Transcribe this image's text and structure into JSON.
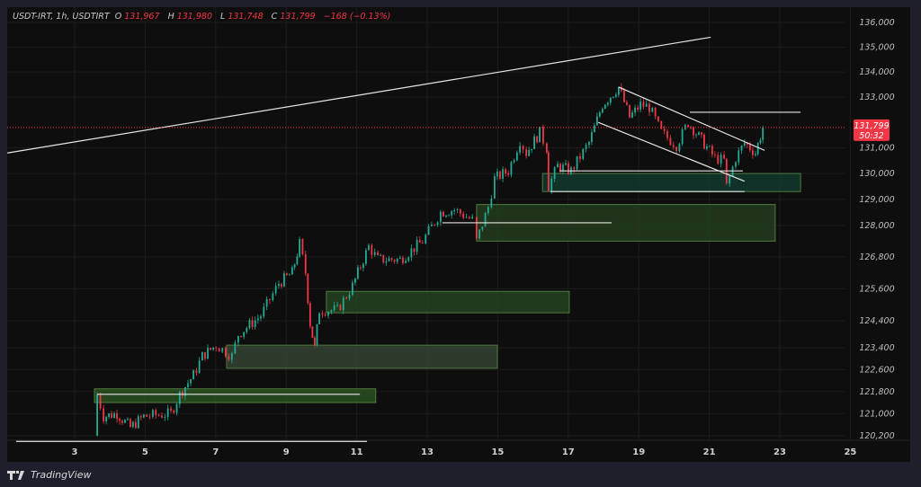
{
  "legend": {
    "symbol": "USDT-IRT, 1h, USDTIRT",
    "open_label": "O",
    "open": "131,967",
    "high_label": "H",
    "high": "131,980",
    "low_label": "L",
    "low": "131,748",
    "close_label": "C",
    "close": "131,799",
    "change": "−168 (−0.13%)"
  },
  "last_price": {
    "value": "131,799",
    "countdown": "50:32",
    "color": "#f23645"
  },
  "branding": {
    "name": "TradingView"
  },
  "colors": {
    "up": "#22ab94",
    "down": "#f23645",
    "background": "#0e0e0e",
    "frame": "#1e1f2a"
  },
  "chart_data": {
    "type": "candlestick",
    "interval": "1h",
    "y_scale": "log",
    "ylim": [
      120000,
      136500
    ],
    "xlim": [
      1,
      26
    ],
    "grid": true,
    "x_ticks": [
      "3",
      "5",
      "7",
      "9",
      "11",
      "13",
      "15",
      "17",
      "19",
      "21",
      "23",
      "25"
    ],
    "y_ticks": [
      "136,000",
      "135,000",
      "134,000",
      "133,000",
      "131,000",
      "130,000",
      "129,000",
      "128,000",
      "126,800",
      "125,600",
      "124,400",
      "123,400",
      "122,600",
      "121,800",
      "121,000",
      "120,200"
    ],
    "price_path": [
      [
        3.56,
        120200
      ],
      [
        3.64,
        121700
      ],
      [
        3.82,
        120900
      ],
      [
        4.2,
        121000
      ],
      [
        4.58,
        120500
      ],
      [
        4.96,
        120900
      ],
      [
        5.73,
        121000
      ],
      [
        5.98,
        121700
      ],
      [
        6.37,
        122400
      ],
      [
        6.62,
        123100
      ],
      [
        7.01,
        123500
      ],
      [
        7.46,
        123100
      ],
      [
        7.64,
        123900
      ],
      [
        8.28,
        124600
      ],
      [
        8.79,
        125800
      ],
      [
        9.17,
        126200
      ],
      [
        9.38,
        127300
      ],
      [
        9.55,
        126200
      ],
      [
        9.68,
        124300
      ],
      [
        9.81,
        123400
      ],
      [
        9.94,
        124800
      ],
      [
        10.45,
        124800
      ],
      [
        10.88,
        125700
      ],
      [
        11.34,
        127200
      ],
      [
        11.6,
        126700
      ],
      [
        12.23,
        126700
      ],
      [
        12.87,
        127400
      ],
      [
        13.38,
        128500
      ],
      [
        13.77,
        128600
      ],
      [
        14.28,
        128200
      ],
      [
        14.4,
        127400
      ],
      [
        14.73,
        128700
      ],
      [
        14.91,
        129800
      ],
      [
        15.3,
        130100
      ],
      [
        15.63,
        131300
      ],
      [
        15.81,
        130800
      ],
      [
        16.19,
        131600
      ],
      [
        16.39,
        131000
      ],
      [
        16.44,
        129500
      ],
      [
        16.7,
        130300
      ],
      [
        17.08,
        130100
      ],
      [
        17.59,
        131200
      ],
      [
        17.97,
        132700
      ],
      [
        18.43,
        133400
      ],
      [
        18.74,
        132200
      ],
      [
        19.05,
        132700
      ],
      [
        19.3,
        132600
      ],
      [
        19.64,
        131600
      ],
      [
        20.07,
        131100
      ],
      [
        20.4,
        132000
      ],
      [
        20.78,
        131300
      ],
      [
        21.16,
        130600
      ],
      [
        21.42,
        130500
      ],
      [
        21.49,
        129500
      ],
      [
        21.75,
        130600
      ],
      [
        22.0,
        131200
      ],
      [
        22.31,
        130800
      ],
      [
        22.52,
        131799
      ]
    ],
    "zones": [
      {
        "from": 3.56,
        "to": 11.54,
        "top": 121900,
        "bottom": 121400,
        "color": "#2e5a23"
      },
      {
        "from": 7.31,
        "to": 14.99,
        "top": 123500,
        "bottom": 122650,
        "color": "#3a4a36"
      },
      {
        "from": 10.14,
        "to": 17.03,
        "top": 125500,
        "bottom": 124700,
        "color": "#254a22"
      },
      {
        "from": 14.4,
        "to": 22.87,
        "top": 128800,
        "bottom": 127400,
        "color": "#26421f"
      },
      {
        "from": 16.27,
        "to": 23.59,
        "top": 130000,
        "bottom": 129300,
        "color": "#113f33"
      }
    ],
    "lines": [
      {
        "name": "long-trendline",
        "from": [
          1.09,
          130800
        ],
        "to": [
          21.04,
          135400
        ]
      },
      {
        "name": "support-121700",
        "from": [
          3.64,
          121700
        ],
        "to": [
          11.09,
          121700
        ]
      },
      {
        "name": "base-120000",
        "from": [
          1.34,
          120000
        ],
        "to": [
          11.29,
          120000
        ]
      },
      {
        "name": "level-128100",
        "from": [
          13.43,
          128100
        ],
        "to": [
          18.23,
          128100
        ]
      },
      {
        "name": "level-130100",
        "from": [
          16.75,
          130100
        ],
        "to": [
          21.95,
          130100
        ]
      },
      {
        "name": "level-129300",
        "from": [
          16.49,
          129300
        ],
        "to": [
          22.0,
          129300
        ]
      },
      {
        "name": "channel-upper",
        "from": [
          18.43,
          133400
        ],
        "to": [
          22.57,
          130900
        ]
      },
      {
        "name": "channel-lower",
        "from": [
          17.85,
          132000
        ],
        "to": [
          22.0,
          129700
        ]
      },
      {
        "name": "resistance-132400",
        "from": [
          20.45,
          132400
        ],
        "to": [
          23.59,
          132400
        ]
      }
    ],
    "last_close": 131799
  }
}
